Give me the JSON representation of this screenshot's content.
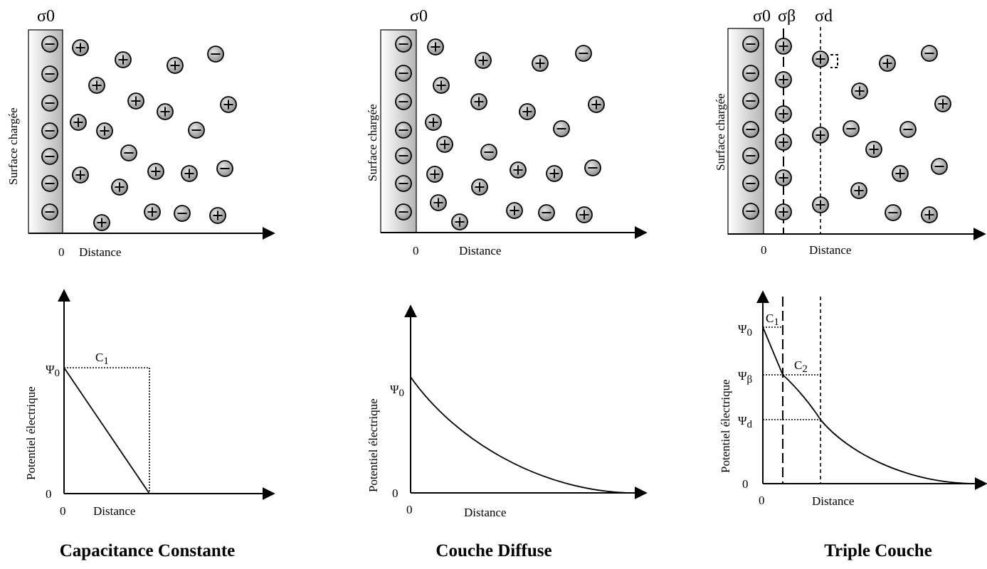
{
  "panels": [
    {
      "title": "Capacitance Constante",
      "sigma_labels": [
        "σ0"
      ],
      "surface_label": "Surface chargée",
      "top_origin": "0",
      "top_xlabel": "Distance",
      "ylabel": "Potentiel électrique",
      "psi_labels": [
        "Ψ0"
      ],
      "cap_labels": [
        "C1"
      ],
      "bottom_origin": "0",
      "bottom_xlabel": "Distance"
    },
    {
      "title": "Couche Diffuse",
      "sigma_labels": [
        "σ0"
      ],
      "surface_label": "Surface chargée",
      "top_origin": "0",
      "top_xlabel": "Distance",
      "ylabel": "Potentiel électrique",
      "psi_labels": [
        "Ψ0"
      ],
      "cap_labels": [],
      "bottom_origin": "0",
      "bottom_xlabel": "Distance"
    },
    {
      "title": "Triple Couche",
      "sigma_labels": [
        "σ0",
        "σβ",
        "σd"
      ],
      "surface_label": "Surface chargée",
      "top_origin": "0",
      "top_xlabel": "Distance",
      "ylabel": "Potentiel électrique",
      "psi_labels": [
        "Ψ0",
        "Ψβ",
        "Ψd"
      ],
      "cap_labels": [
        "C1",
        "C2"
      ],
      "bottom_origin": "0",
      "bottom_xlabel": "Distance"
    }
  ],
  "ion_signs": {
    "negative": "−",
    "positive": "+"
  },
  "colors": {
    "ion_fill_light": "#d9d9d9",
    "ion_fill_dark": "#8a8a8a",
    "surface_light": "#ffffff",
    "surface_dark": "#b5b5b5"
  }
}
